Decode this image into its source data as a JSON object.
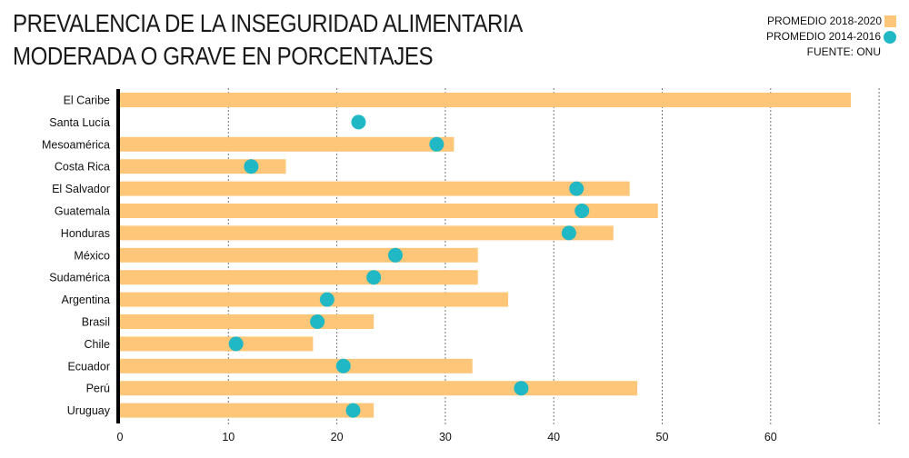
{
  "chart_data": {
    "type": "bar",
    "title_lines": [
      "PREVALENCIA DE LA INSEGURIDAD ALIMENTARIA",
      "MODERADA O GRAVE EN PORCENTAJES"
    ],
    "orientation": "horizontal",
    "categories": [
      "El Caribe",
      "Santa Lucía",
      "Mesoamérica",
      "Costa Rica",
      "El Salvador",
      "Guatemala",
      "Honduras",
      "México",
      "Sudamérica",
      "Argentina",
      "Brasil",
      "Chile",
      "Ecuador",
      "Perú",
      "Uruguay"
    ],
    "series": [
      {
        "name": "PROMEDIO 2018-2020",
        "mark": "bar",
        "color": "#fdc679",
        "values": [
          67.4,
          null,
          30.8,
          15.3,
          47.0,
          49.6,
          45.5,
          33.0,
          33.0,
          35.8,
          23.4,
          17.8,
          32.5,
          47.7,
          23.4
        ]
      },
      {
        "name": "PROMEDIO 2014-2016",
        "mark": "dot",
        "color": "#20b8c4",
        "values": [
          null,
          22.0,
          29.2,
          12.1,
          42.1,
          42.6,
          41.4,
          25.4,
          23.4,
          19.1,
          18.2,
          10.7,
          20.6,
          37.0,
          21.5
        ]
      }
    ],
    "xlim": [
      0,
      70
    ],
    "xticks": [
      0,
      10,
      20,
      30,
      40,
      50,
      60
    ],
    "gridlines": [
      10,
      20,
      30,
      40,
      50,
      60,
      70
    ],
    "grid": "vertical dotted",
    "legend_position": "top-right",
    "source": "FUENTE: ONU",
    "xlabel": "",
    "ylabel": ""
  }
}
